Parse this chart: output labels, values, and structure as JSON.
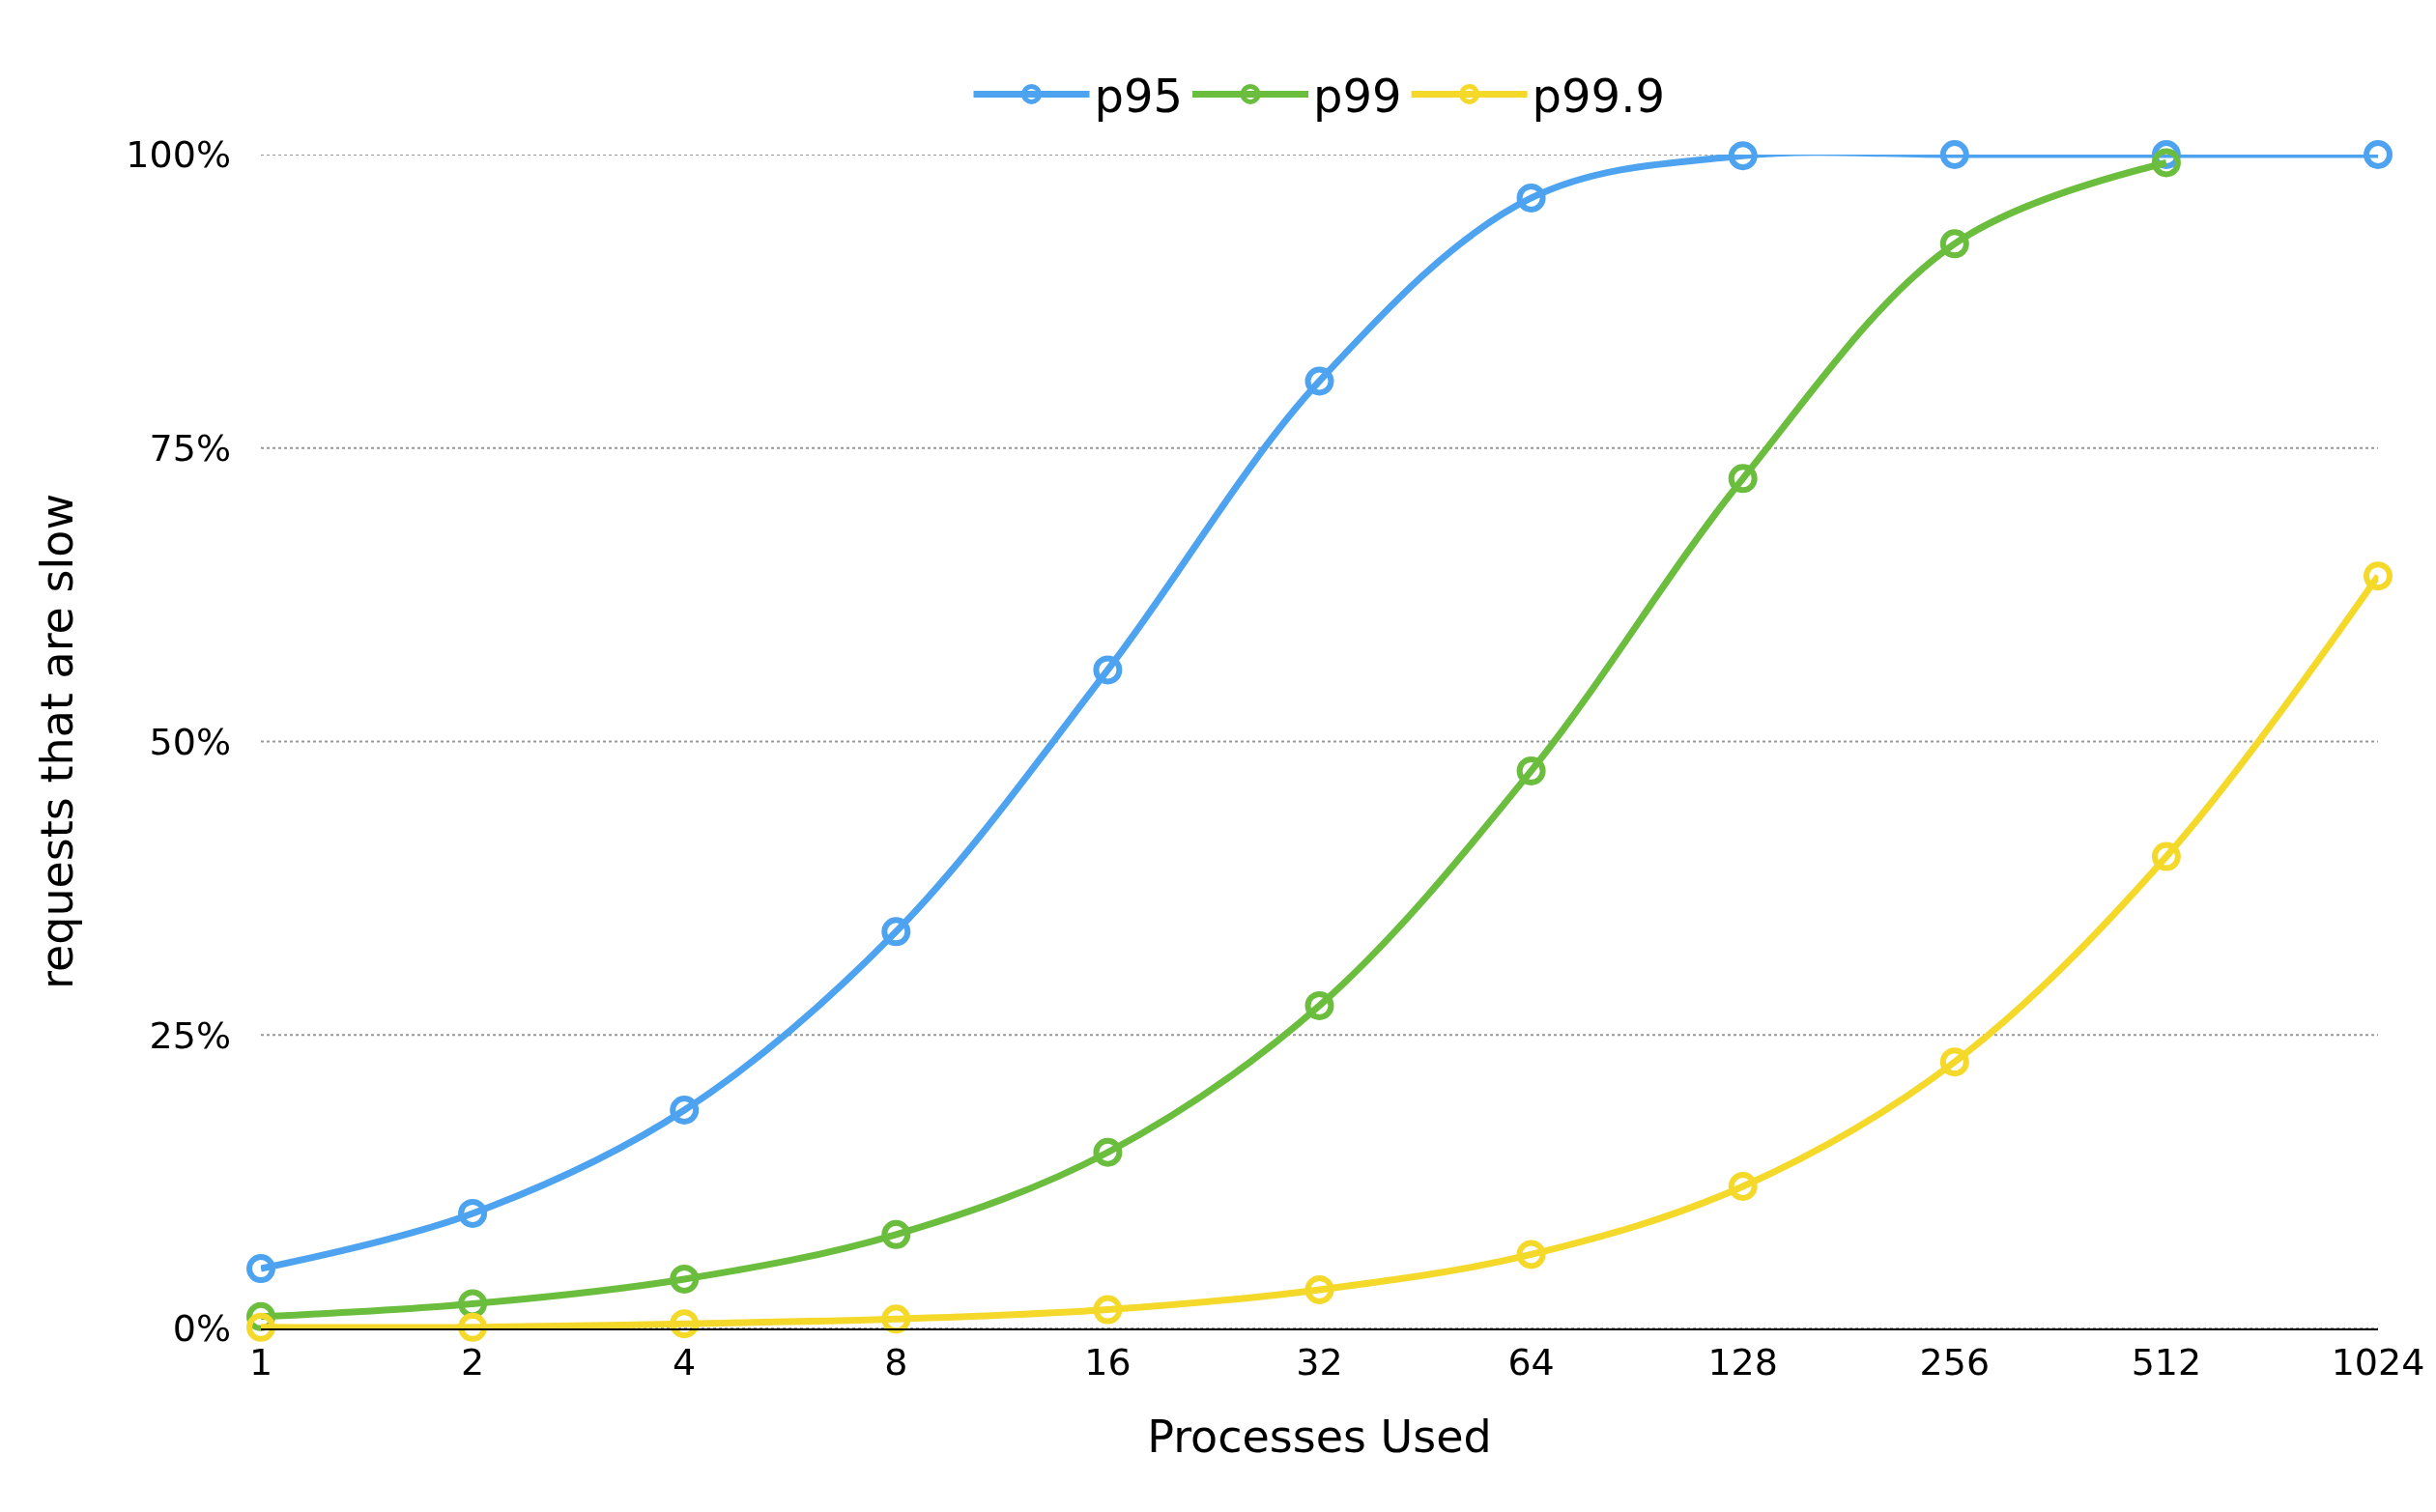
{
  "chart_data": {
    "type": "line",
    "xlabel": "Processes Used",
    "ylabel": "requests that are slow",
    "categories": [
      "1",
      "2",
      "4",
      "8",
      "16",
      "32",
      "64",
      "128",
      "256",
      "512",
      "1024"
    ],
    "series": [
      {
        "name": "p95",
        "color": "#4da3f0",
        "values": [
          5.1,
          9.8,
          18.6,
          33.8,
          56.1,
          80.7,
          96.3,
          99.9,
          100,
          100,
          100
        ]
      },
      {
        "name": "p99",
        "color": "#6bbd3e",
        "values": [
          1.0,
          2.1,
          4.2,
          8.0,
          15.0,
          27.5,
          47.5,
          72.4,
          92.4,
          99.3,
          null
        ]
      },
      {
        "name": "p99.9",
        "color": "#f5d92a",
        "values": [
          0.1,
          0.1,
          0.4,
          0.8,
          1.6,
          3.3,
          6.3,
          12.1,
          22.7,
          40.2,
          64.1
        ]
      }
    ],
    "ylim": [
      0,
      100
    ],
    "yticks": [
      {
        "value": 0,
        "label": "0%"
      },
      {
        "value": 25,
        "label": "25%"
      },
      {
        "value": 50,
        "label": "50%"
      },
      {
        "value": 75,
        "label": "75%"
      },
      {
        "value": 100,
        "label": "100%"
      }
    ],
    "grid": "y",
    "legend": "top",
    "marker": "circle",
    "line_style": "solid"
  }
}
